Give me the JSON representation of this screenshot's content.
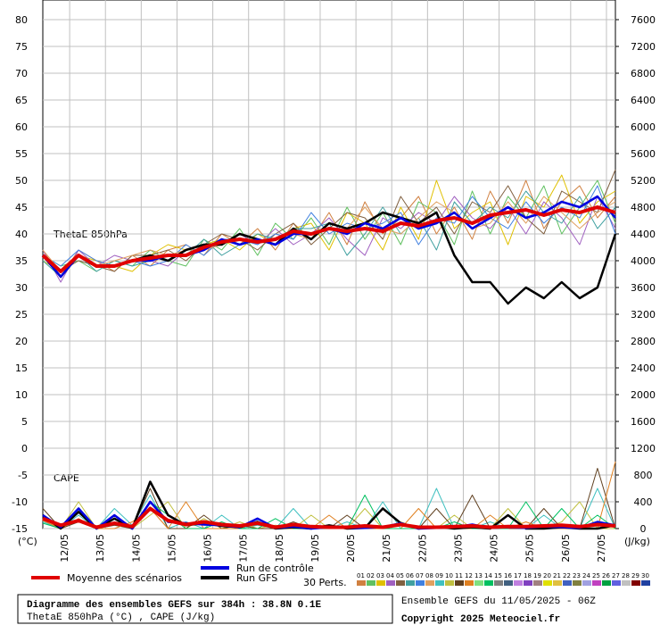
{
  "chart_data": {
    "type": "line",
    "annotations": [
      "ThetaE 850hPa",
      "CAPE"
    ],
    "y_unit": "(°C)",
    "y2_unit": "(J/kg)",
    "grid": true,
    "xlim": [
      0,
      384
    ],
    "ylim": [
      -15,
      80
    ],
    "y2lim": [
      0,
      7600
    ],
    "xticks": [
      {
        "value": 18,
        "label": "12/05"
      },
      {
        "value": 42,
        "label": "13/05"
      },
      {
        "value": 66,
        "label": "14/05"
      },
      {
        "value": 90,
        "label": "15/05"
      },
      {
        "value": 114,
        "label": "16/05"
      },
      {
        "value": 138,
        "label": "17/05"
      },
      {
        "value": 162,
        "label": "18/05"
      },
      {
        "value": 186,
        "label": "19/05"
      },
      {
        "value": 210,
        "label": "20/05"
      },
      {
        "value": 234,
        "label": "21/05"
      },
      {
        "value": 258,
        "label": "22/05"
      },
      {
        "value": 282,
        "label": "23/05"
      },
      {
        "value": 306,
        "label": "24/05"
      },
      {
        "value": 330,
        "label": "25/05"
      },
      {
        "value": 354,
        "label": "26/05"
      },
      {
        "value": 378,
        "label": "27/05"
      }
    ],
    "yticks": [
      -15,
      -10,
      -5,
      0,
      5,
      10,
      15,
      20,
      25,
      30,
      35,
      40,
      45,
      50,
      55,
      60,
      65,
      70,
      75,
      80
    ],
    "y2ticks": [
      0,
      400,
      800,
      1200,
      1600,
      2000,
      2400,
      2800,
      3200,
      3600,
      4000,
      4400,
      4800,
      5200,
      5600,
      6000,
      6400,
      6800,
      7200,
      7600
    ],
    "x": [
      0,
      12,
      24,
      36,
      48,
      60,
      72,
      84,
      96,
      108,
      120,
      132,
      144,
      156,
      168,
      180,
      192,
      204,
      216,
      228,
      240,
      252,
      264,
      276,
      288,
      300,
      312,
      324,
      336,
      348,
      360,
      372,
      384
    ],
    "series": [
      {
        "color": "#d08040",
        "values": [
          37,
          32,
          37,
          35,
          33,
          36,
          34,
          37,
          38,
          36,
          40,
          38,
          41,
          37,
          42,
          39,
          44,
          38,
          46,
          40,
          43,
          47,
          40,
          45,
          39,
          48,
          42,
          50,
          41,
          46,
          49,
          43,
          47
        ]
      },
      {
        "color": "#60c060",
        "values": [
          36,
          34,
          35,
          33,
          35,
          34,
          37,
          35,
          34,
          39,
          37,
          41,
          36,
          42,
          39,
          43,
          38,
          45,
          39,
          44,
          38,
          46,
          44,
          38,
          48,
          40,
          47,
          43,
          49,
          40,
          45,
          50,
          42
        ]
      },
      {
        "color": "#e0c000",
        "values": [
          35,
          33,
          36,
          35,
          34,
          33,
          36,
          38,
          37,
          38,
          39,
          37,
          40,
          38,
          41,
          42,
          37,
          44,
          42,
          37,
          45,
          39,
          50,
          41,
          44,
          46,
          38,
          47,
          45,
          51,
          42,
          46,
          48
        ]
      },
      {
        "color": "#a060c0",
        "values": [
          37,
          31,
          37,
          34,
          36,
          35,
          35,
          34,
          37,
          37,
          38,
          40,
          38,
          41,
          38,
          40,
          43,
          39,
          36,
          43,
          41,
          44,
          42,
          47,
          43,
          41,
          45,
          40,
          46,
          43,
          38,
          47,
          41
        ]
      },
      {
        "color": "#806040",
        "values": [
          36,
          33,
          35,
          34,
          33,
          36,
          36,
          37,
          35,
          38,
          40,
          39,
          37,
          40,
          42,
          38,
          41,
          44,
          43,
          39,
          47,
          42,
          45,
          40,
          46,
          44,
          49,
          43,
          40,
          48,
          46,
          44,
          52
        ]
      },
      {
        "color": "#40a0a0",
        "values": [
          35,
          32,
          36,
          33,
          35,
          34,
          35,
          36,
          36,
          39,
          36,
          38,
          40,
          39,
          41,
          41,
          42,
          36,
          40,
          45,
          40,
          43,
          37,
          46,
          42,
          45,
          43,
          48,
          44,
          42,
          47,
          41,
          45
        ]
      },
      {
        "color": "#4080e0",
        "values": [
          36,
          34,
          37,
          35,
          34,
          35,
          34,
          35,
          38,
          36,
          39,
          39,
          38,
          40,
          39,
          44,
          40,
          42,
          41,
          42,
          44,
          38,
          43,
          42,
          47,
          43,
          41,
          46,
          42,
          45,
          43,
          49,
          40
        ]
      },
      {
        "color": "#e0a060",
        "values": [
          37,
          33,
          36,
          34,
          35,
          36,
          37,
          36,
          37,
          37,
          38,
          40,
          39,
          38,
          40,
          39,
          42,
          41,
          45,
          41,
          40,
          43,
          46,
          44,
          41,
          42,
          46,
          42,
          47,
          44,
          41,
          44,
          46
        ]
      },
      {
        "color": "#40c0c0",
        "axis": "y2",
        "values": [
          100,
          0,
          200,
          0,
          300,
          50,
          500,
          0,
          100,
          0,
          200,
          0,
          50,
          0,
          300,
          0,
          0,
          100,
          0,
          400,
          0,
          0,
          600,
          0,
          0,
          100,
          0,
          0,
          200,
          0,
          0,
          600,
          0
        ]
      },
      {
        "color": "#c0c040",
        "axis": "y2",
        "values": [
          150,
          0,
          400,
          0,
          100,
          0,
          200,
          400,
          0,
          150,
          0,
          100,
          0,
          50,
          0,
          200,
          0,
          0,
          300,
          0,
          100,
          0,
          0,
          200,
          0,
          0,
          300,
          0,
          0,
          100,
          400,
          0,
          0
        ]
      },
      {
        "color": "#604020",
        "axis": "y2",
        "values": [
          300,
          0,
          100,
          0,
          50,
          0,
          600,
          0,
          0,
          200,
          0,
          50,
          0,
          0,
          100,
          0,
          0,
          200,
          0,
          0,
          50,
          0,
          300,
          0,
          500,
          0,
          0,
          0,
          300,
          0,
          0,
          900,
          0
        ]
      },
      {
        "color": "#e08020",
        "axis": "y2",
        "values": [
          120,
          0,
          150,
          0,
          0,
          100,
          300,
          0,
          400,
          0,
          0,
          0,
          100,
          0,
          0,
          0,
          200,
          0,
          0,
          0,
          0,
          300,
          0,
          0,
          0,
          200,
          0,
          100,
          0,
          0,
          0,
          0,
          1000
        ]
      },
      {
        "color": "#00c060",
        "axis": "y2",
        "values": [
          80,
          0,
          250,
          0,
          200,
          0,
          400,
          200,
          0,
          0,
          100,
          0,
          0,
          150,
          0,
          0,
          0,
          0,
          500,
          0,
          0,
          0,
          0,
          100,
          0,
          0,
          0,
          400,
          0,
          300,
          0,
          200,
          0
        ]
      },
      {
        "color": "#000000",
        "axis": "y2",
        "width": 2.5,
        "values": [
          200,
          0,
          250,
          0,
          150,
          0,
          700,
          200,
          50,
          80,
          40,
          20,
          100,
          0,
          20,
          0,
          50,
          0,
          10,
          300,
          80,
          0,
          30,
          0,
          20,
          0,
          200,
          0,
          0,
          20,
          0,
          0,
          50
        ]
      },
      {
        "color": "#0000e0",
        "axis": "y2",
        "width": 2.5,
        "values": [
          200,
          20,
          300,
          0,
          200,
          0,
          400,
          100,
          80,
          60,
          50,
          20,
          150,
          10,
          30,
          0,
          20,
          10,
          10,
          20,
          80,
          0,
          10,
          20,
          60,
          10,
          20,
          10,
          30,
          20,
          10,
          100,
          50
        ]
      },
      {
        "color": "#e00000",
        "axis": "y2",
        "width": 4,
        "values": [
          150,
          50,
          120,
          20,
          80,
          30,
          300,
          120,
          60,
          100,
          60,
          40,
          80,
          20,
          60,
          30,
          20,
          20,
          40,
          20,
          60,
          20,
          20,
          30,
          40,
          20,
          30,
          30,
          40,
          50,
          30,
          60,
          40
        ]
      },
      {
        "name": "Run GFS",
        "color": "#000000",
        "width": 2.5,
        "values": [
          36,
          32,
          36,
          34,
          34,
          35,
          36,
          35,
          37,
          38,
          38,
          40,
          39,
          38,
          41,
          39,
          42,
          41,
          42,
          44,
          43,
          42,
          44,
          36,
          31,
          31,
          27,
          30,
          28,
          31,
          28,
          30,
          40
        ]
      },
      {
        "name": "Run de contrôle",
        "color": "#0000e0",
        "width": 2.5,
        "values": [
          36,
          32,
          36,
          34,
          34,
          35,
          35,
          36,
          36,
          37,
          39,
          38,
          39,
          38,
          40,
          40,
          41,
          40,
          42,
          41,
          43,
          41,
          42,
          44,
          41,
          43,
          45,
          43,
          44,
          46,
          45,
          47,
          43
        ]
      },
      {
        "name": "Moyenne des scénarios",
        "color": "#e00000",
        "width": 4,
        "values": [
          36,
          33,
          36,
          34,
          34,
          35,
          35.5,
          36,
          36,
          37.5,
          38.5,
          39,
          38.5,
          39,
          40.5,
          40,
          41,
          40.5,
          41,
          40.5,
          42,
          41.5,
          42.5,
          43,
          42,
          43.5,
          44,
          44.5,
          43.5,
          44.5,
          44,
          45,
          44
        ]
      }
    ],
    "pert_legend": {
      "title": "30 Perts.",
      "labels": [
        "01",
        "02",
        "03",
        "04",
        "05",
        "06",
        "07",
        "08",
        "09",
        "10",
        "11",
        "12",
        "13",
        "14",
        "15",
        "16",
        "17",
        "18",
        "19",
        "20",
        "21",
        "22",
        "23",
        "24",
        "25",
        "26",
        "27",
        "28",
        "29",
        "30"
      ],
      "colors": [
        "#d08040",
        "#60c060",
        "#e0c000",
        "#a060c0",
        "#806040",
        "#40a0a0",
        "#4080e0",
        "#e0a060",
        "#40c0c0",
        "#c0c040",
        "#604020",
        "#e08020",
        "#80e080",
        "#00c060",
        "#808080",
        "#406080",
        "#c080e0",
        "#8040c0",
        "#a08080",
        "#e0e000",
        "#e0c040",
        "#4060c0",
        "#808040",
        "#a0a0e0",
        "#c040c0",
        "#00a040",
        "#6060e0",
        "#c0c0c0",
        "#800000",
        "#2040a0"
      ]
    }
  },
  "info": {
    "title": "Diagramme des ensembles GEFS sur 384h : 38.8N 0.1E",
    "subtitle": "ThetaE 850hPa (°C) , CAPE (J/kg)",
    "run": "Ensemble GEFS du 11/05/2025 - 06Z",
    "copyright": "Copyright 2025 Meteociel.fr"
  }
}
